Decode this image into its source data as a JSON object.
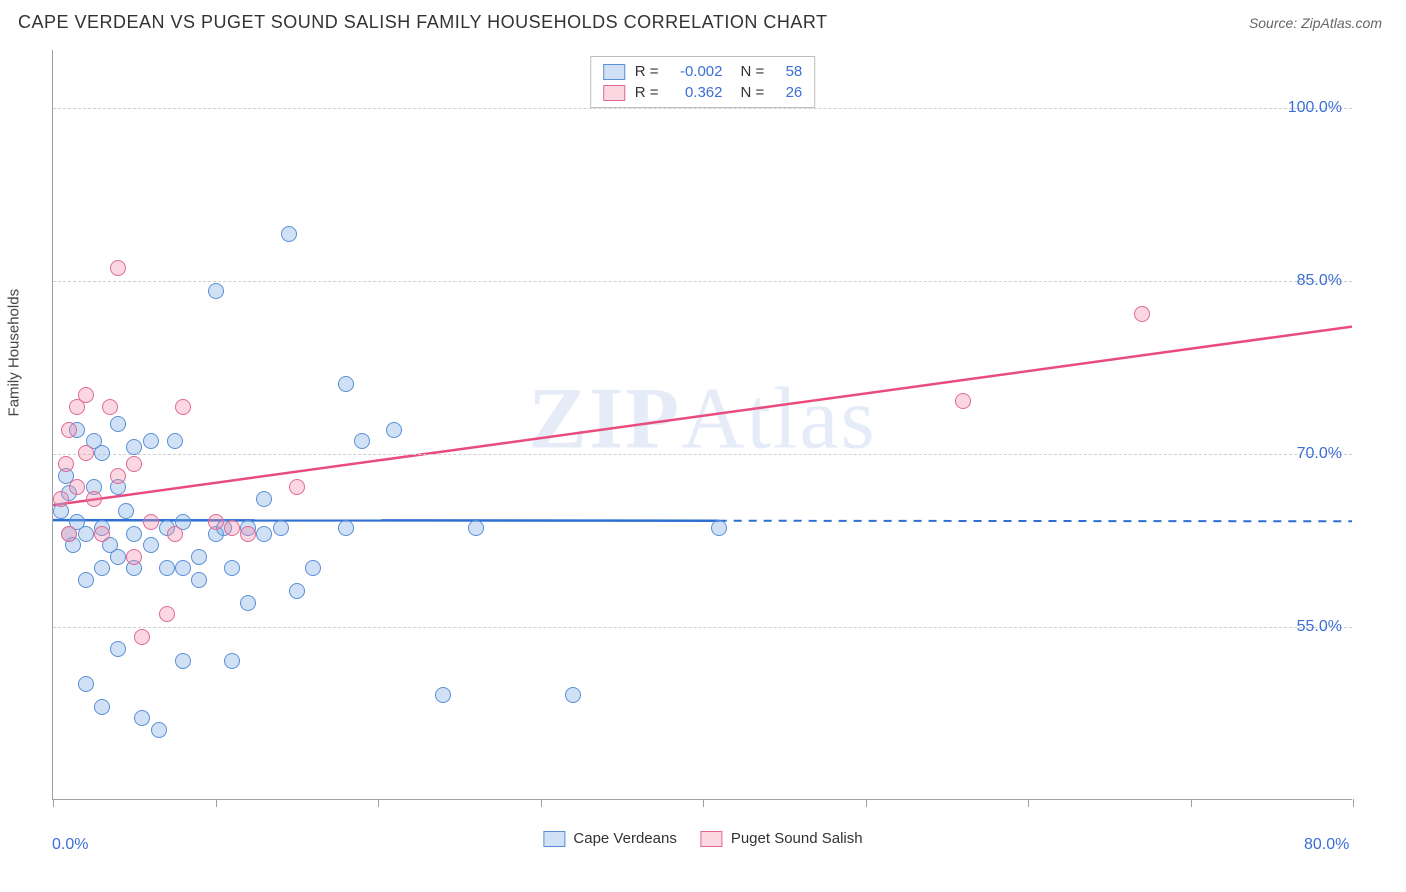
{
  "header": {
    "title": "CAPE VERDEAN VS PUGET SOUND SALISH FAMILY HOUSEHOLDS CORRELATION CHART",
    "source": "Source: ZipAtlas.com"
  },
  "watermark": {
    "left": "ZIP",
    "right": "Atlas"
  },
  "y_axis": {
    "label": "Family Households"
  },
  "chart": {
    "type": "scatter",
    "background_color": "#ffffff",
    "grid_color": "#cfcfcf",
    "axis_color": "#9aa0a6",
    "label_color": "#3b6fd6",
    "xlim": [
      0,
      80
    ],
    "ylim": [
      40,
      105
    ],
    "x_ticks": [
      0,
      10,
      20,
      30,
      40,
      50,
      60,
      70,
      80
    ],
    "x_tick_labels": {
      "0": "0.0%",
      "80": "80.0%"
    },
    "y_gridlines": [
      55,
      70,
      85,
      100
    ],
    "y_tick_labels": {
      "55": "55.0%",
      "70": "70.0%",
      "85": "85.0%",
      "100": "100.0%"
    },
    "series": [
      {
        "name": "Cape Verdeans",
        "fill": "rgba(120,170,230,0.35)",
        "stroke": "#5a8fd6",
        "trend_color": "#2e6fd1",
        "trend": {
          "y_at_xmin": 64.2,
          "y_at_xmax": 64.1,
          "solid_until_x": 41,
          "dashed": true
        },
        "stats": {
          "R": "-0.002",
          "N": "58"
        },
        "points": [
          [
            0.5,
            65
          ],
          [
            0.8,
            68
          ],
          [
            1,
            63
          ],
          [
            1,
            66.5
          ],
          [
            1.2,
            62
          ],
          [
            1.5,
            64
          ],
          [
            1.5,
            72
          ],
          [
            2,
            50
          ],
          [
            2,
            59
          ],
          [
            2,
            63
          ],
          [
            2.5,
            67
          ],
          [
            2.5,
            71
          ],
          [
            3,
            48
          ],
          [
            3,
            60
          ],
          [
            3,
            63.5
          ],
          [
            3,
            70
          ],
          [
            3.5,
            62
          ],
          [
            4,
            53
          ],
          [
            4,
            61
          ],
          [
            4,
            67
          ],
          [
            4,
            72.5
          ],
          [
            4.5,
            65
          ],
          [
            5,
            60
          ],
          [
            5,
            63
          ],
          [
            5,
            70.5
          ],
          [
            5.5,
            47
          ],
          [
            6,
            62
          ],
          [
            6,
            71
          ],
          [
            6.5,
            46
          ],
          [
            7,
            60
          ],
          [
            7,
            63.5
          ],
          [
            7.5,
            71
          ],
          [
            8,
            52
          ],
          [
            8,
            60
          ],
          [
            8,
            64
          ],
          [
            9,
            59
          ],
          [
            9,
            61
          ],
          [
            10,
            84
          ],
          [
            10,
            63
          ],
          [
            10.5,
            63.5
          ],
          [
            11,
            52
          ],
          [
            11,
            60
          ],
          [
            12,
            57
          ],
          [
            12,
            63.5
          ],
          [
            13,
            63
          ],
          [
            13,
            66
          ],
          [
            14,
            63.5
          ],
          [
            14.5,
            89
          ],
          [
            15,
            58
          ],
          [
            16,
            60
          ],
          [
            18,
            63.5
          ],
          [
            18,
            76
          ],
          [
            19,
            71
          ],
          [
            21,
            72
          ],
          [
            26,
            63.5
          ],
          [
            24,
            49
          ],
          [
            32,
            49
          ],
          [
            41,
            63.5
          ]
        ]
      },
      {
        "name": "Puget Sound Salish",
        "fill": "rgba(240,140,170,0.35)",
        "stroke": "#e06a94",
        "trend_color": "#e94b7d",
        "trend": {
          "y_at_xmin": 65.5,
          "y_at_xmax": 81.0,
          "solid_until_x": 80,
          "dashed": false
        },
        "stats": {
          "R": "0.362",
          "N": "26"
        },
        "points": [
          [
            0.5,
            66
          ],
          [
            0.8,
            69
          ],
          [
            1,
            63
          ],
          [
            1,
            72
          ],
          [
            1.5,
            67
          ],
          [
            1.5,
            74
          ],
          [
            2,
            70
          ],
          [
            2,
            75
          ],
          [
            2.5,
            66
          ],
          [
            3,
            63
          ],
          [
            3.5,
            74
          ],
          [
            4,
            86
          ],
          [
            4,
            68
          ],
          [
            5,
            61
          ],
          [
            5,
            69
          ],
          [
            5.5,
            54
          ],
          [
            6,
            64
          ],
          [
            7,
            56
          ],
          [
            7.5,
            63
          ],
          [
            8,
            74
          ],
          [
            10,
            64
          ],
          [
            11,
            63.5
          ],
          [
            12,
            63
          ],
          [
            15,
            67
          ],
          [
            56,
            74.5
          ],
          [
            67,
            82
          ]
        ]
      }
    ]
  },
  "footer_legend": {
    "items": [
      {
        "label": "Cape Verdeans",
        "fill": "rgba(120,170,230,0.35)",
        "stroke": "#5a8fd6"
      },
      {
        "label": "Puget Sound Salish",
        "fill": "rgba(240,140,170,0.35)",
        "stroke": "#e06a94"
      }
    ]
  },
  "stats_box": {
    "R_label": "R =",
    "N_label": "N ="
  }
}
